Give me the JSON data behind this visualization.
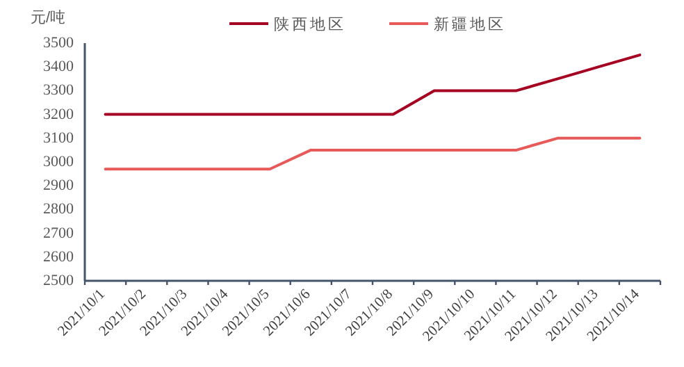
{
  "chart_data": {
    "type": "line",
    "ylabel": "元/吨",
    "categories": [
      "2021/10/1",
      "2021/10/2",
      "2021/10/3",
      "2021/10/4",
      "2021/10/5",
      "2021/10/6",
      "2021/10/7",
      "2021/10/8",
      "2021/10/9",
      "2021/10/10",
      "2021/10/11",
      "2021/10/12",
      "2021/10/13",
      "2021/10/14"
    ],
    "series": [
      {
        "name": "陕西地区",
        "color": "#a50021",
        "values": [
          3200,
          3200,
          3200,
          3200,
          3200,
          3200,
          3200,
          3200,
          3300,
          3300,
          3300,
          3350,
          3400,
          3450
        ]
      },
      {
        "name": "新疆地区",
        "color": "#e8595a",
        "values": [
          2970,
          2970,
          2970,
          2970,
          2970,
          3050,
          3050,
          3050,
          3050,
          3050,
          3050,
          3100,
          3100,
          3100
        ]
      }
    ],
    "ylim": [
      2500,
      3500
    ],
    "yticks": [
      2500,
      2600,
      2700,
      2800,
      2900,
      3000,
      3100,
      3200,
      3300,
      3400,
      3500
    ],
    "grid": false,
    "legend": "top",
    "marker": "none",
    "line_style": "solid"
  }
}
